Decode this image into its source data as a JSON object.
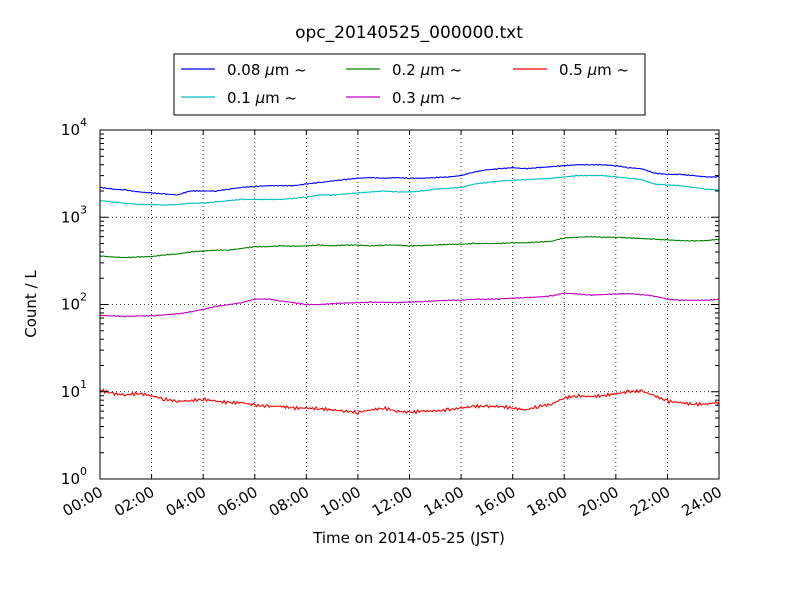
{
  "chart_data": {
    "type": "line",
    "title": "opc_20140525_000000.txt",
    "xlabel": "Time on 2014-05-25 (JST)",
    "ylabel": "Count / L",
    "x_ticks": [
      "00:00",
      "02:00",
      "04:00",
      "06:00",
      "08:00",
      "10:00",
      "12:00",
      "14:00",
      "16:00",
      "18:00",
      "20:00",
      "22:00",
      "24:00"
    ],
    "x_range_hours": [
      0,
      24
    ],
    "y_scale": "log",
    "ylim": [
      1,
      10000
    ],
    "y_ticks": [
      {
        "value": 1,
        "base": "10",
        "exp": "0"
      },
      {
        "value": 10,
        "base": "10",
        "exp": "1"
      },
      {
        "value": 100,
        "base": "10",
        "exp": "2"
      },
      {
        "value": 1000,
        "base": "10",
        "exp": "3"
      },
      {
        "value": 10000,
        "base": "10",
        "exp": "4"
      }
    ],
    "grid": true,
    "legend_position": "top",
    "x": [
      0,
      0.5,
      1,
      1.5,
      2,
      2.5,
      3,
      3.5,
      4,
      4.5,
      5,
      5.5,
      6,
      6.5,
      7,
      7.5,
      8,
      8.5,
      9,
      9.5,
      10,
      10.5,
      11,
      11.5,
      12,
      12.5,
      13,
      13.5,
      14,
      14.5,
      15,
      15.5,
      16,
      16.5,
      17,
      17.5,
      18,
      18.5,
      19,
      19.5,
      20,
      20.5,
      21,
      21.5,
      22,
      22.5,
      23,
      23.5,
      24
    ],
    "series": [
      {
        "name": "0.08",
        "color": "#0000ff",
        "values": [
          2200,
          2100,
          2050,
          1950,
          1900,
          1850,
          1800,
          2000,
          2000,
          2000,
          2100,
          2200,
          2250,
          2300,
          2300,
          2300,
          2400,
          2500,
          2600,
          2700,
          2800,
          2850,
          2800,
          2850,
          2800,
          2800,
          2850,
          2900,
          3000,
          3300,
          3500,
          3600,
          3700,
          3600,
          3700,
          3800,
          3900,
          4000,
          4000,
          4000,
          3900,
          3700,
          3600,
          3200,
          3100,
          3100,
          3000,
          2900,
          2900
        ]
      },
      {
        "name": "0.1",
        "color": "#00bfbf",
        "values": [
          1550,
          1500,
          1450,
          1400,
          1400,
          1380,
          1400,
          1450,
          1450,
          1500,
          1550,
          1600,
          1600,
          1600,
          1600,
          1650,
          1700,
          1800,
          1800,
          1850,
          1900,
          1950,
          2000,
          1950,
          1950,
          2000,
          2100,
          2150,
          2200,
          2400,
          2500,
          2600,
          2650,
          2700,
          2750,
          2800,
          2900,
          3000,
          3000,
          3000,
          2900,
          2800,
          2700,
          2400,
          2350,
          2300,
          2200,
          2100,
          2050
        ]
      },
      {
        "name": "0.2",
        "color": "#008000",
        "values": [
          360,
          350,
          345,
          350,
          355,
          370,
          380,
          400,
          410,
          420,
          420,
          440,
          460,
          460,
          470,
          465,
          470,
          480,
          470,
          480,
          480,
          470,
          480,
          480,
          470,
          475,
          480,
          490,
          490,
          500,
          500,
          500,
          510,
          510,
          520,
          530,
          580,
          590,
          600,
          590,
          590,
          580,
          570,
          560,
          550,
          540,
          535,
          540,
          560
        ]
      },
      {
        "name": "0.3",
        "color": "#bf00bf",
        "values": [
          75,
          74,
          73,
          74,
          74,
          76,
          78,
          82,
          88,
          95,
          100,
          105,
          115,
          116,
          110,
          105,
          100,
          100,
          102,
          104,
          105,
          106,
          106,
          105,
          107,
          108,
          110,
          112,
          112,
          115,
          115,
          116,
          118,
          120,
          122,
          125,
          135,
          132,
          128,
          130,
          132,
          133,
          130,
          125,
          115,
          112,
          112,
          112,
          115
        ]
      },
      {
        "name": "0.5",
        "color": "#ff0000",
        "values": [
          10.5,
          9.5,
          9.2,
          9.6,
          9.0,
          8.2,
          7.8,
          7.9,
          8.2,
          7.8,
          7.5,
          7.5,
          7.0,
          6.8,
          6.8,
          6.5,
          6.5,
          6.4,
          6.2,
          6.0,
          5.8,
          6.2,
          6.5,
          6.0,
          5.8,
          6.0,
          6.0,
          6.2,
          6.5,
          6.8,
          6.8,
          6.8,
          6.5,
          6.2,
          6.8,
          7.2,
          8.5,
          9.0,
          8.8,
          9.0,
          9.5,
          10.0,
          10.2,
          9.0,
          7.8,
          7.5,
          7.2,
          7.2,
          7.6
        ]
      }
    ],
    "legend": {
      "unit": "μm",
      "tilde": "~",
      "order": [
        0,
        2,
        4,
        1,
        3
      ]
    }
  }
}
